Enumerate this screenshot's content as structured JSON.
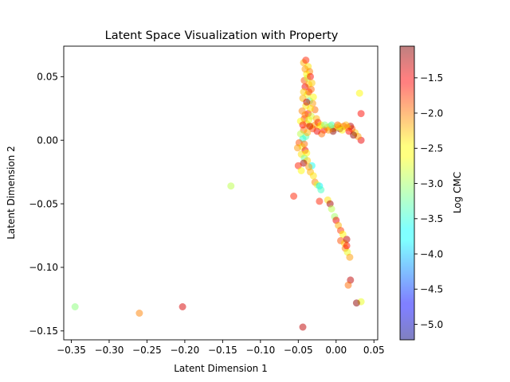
{
  "chart_data": {
    "type": "scatter",
    "title": "Latent Space Visualization with Property",
    "xlabel": "Latent Dimension 1",
    "ylabel": "Latent Dimension 2",
    "xlim": [
      -0.36,
      0.055
    ],
    "ylim": [
      -0.157,
      0.074
    ],
    "xticks": [
      -0.35,
      -0.3,
      -0.25,
      -0.2,
      -0.15,
      -0.1,
      -0.05,
      0.0,
      0.05
    ],
    "xtick_labels": [
      "−0.35",
      "−0.30",
      "−0.25",
      "−0.20",
      "−0.15",
      "−0.10",
      "−0.05",
      "0.00",
      "0.05"
    ],
    "yticks": [
      0.05,
      0.0,
      -0.05,
      -0.1,
      -0.15
    ],
    "ytick_labels": [
      "0.05",
      "0.00",
      "−0.05",
      "−0.10",
      "−0.15"
    ],
    "colorbar": {
      "label": "Log CMC",
      "range": [
        -5.22,
        -1.05
      ],
      "ticks": [
        -1.5,
        -2.0,
        -2.5,
        -3.0,
        -3.5,
        -4.0,
        -4.5,
        -5.0
      ],
      "tick_labels": [
        "−1.5",
        "−2.0",
        "−2.5",
        "−3.0",
        "−3.5",
        "−4.0",
        "−4.5",
        "−5.0"
      ],
      "colormap": "jet",
      "alpha": 0.5
    },
    "grid": false,
    "points": [
      {
        "x": -0.345,
        "y": -0.131,
        "c": -3.1
      },
      {
        "x": -0.26,
        "y": -0.136,
        "c": -2.1
      },
      {
        "x": -0.203,
        "y": -0.131,
        "c": -1.4
      },
      {
        "x": -0.139,
        "y": -0.036,
        "c": -2.9
      },
      {
        "x": -0.044,
        "y": -0.147,
        "c": -1.3
      },
      {
        "x": -0.056,
        "y": -0.044,
        "c": -1.7
      },
      {
        "x": 0.033,
        "y": -0.127,
        "c": -2.7
      },
      {
        "x": 0.027,
        "y": -0.128,
        "c": -1.1
      },
      {
        "x": 0.031,
        "y": 0.037,
        "c": -2.6
      },
      {
        "x": 0.033,
        "y": 0.021,
        "c": -1.6
      },
      {
        "x": 0.033,
        "y": 0.0,
        "c": -1.5
      },
      {
        "x": 0.029,
        "y": 0.003,
        "c": -2.2
      },
      {
        "x": 0.025,
        "y": 0.006,
        "c": -2.4
      },
      {
        "x": 0.021,
        "y": 0.009,
        "c": -1.9
      },
      {
        "x": 0.019,
        "y": 0.011,
        "c": -1.3
      },
      {
        "x": 0.015,
        "y": 0.01,
        "c": -2.3
      },
      {
        "x": 0.01,
        "y": 0.011,
        "c": -1.8
      },
      {
        "x": 0.005,
        "y": 0.009,
        "c": -1.1
      },
      {
        "x": 0.004,
        "y": 0.011,
        "c": -2.5
      },
      {
        "x": 0.0,
        "y": 0.01,
        "c": -2.7
      },
      {
        "x": -0.004,
        "y": 0.009,
        "c": -2.1
      },
      {
        "x": -0.008,
        "y": 0.011,
        "c": -2.8
      },
      {
        "x": -0.012,
        "y": 0.01,
        "c": -2.4
      },
      {
        "x": -0.016,
        "y": 0.008,
        "c": -1.6
      },
      {
        "x": -0.019,
        "y": 0.005,
        "c": -2.0
      },
      {
        "x": -0.022,
        "y": 0.011,
        "c": -2.6
      },
      {
        "x": -0.025,
        "y": 0.007,
        "c": -1.5
      },
      {
        "x": -0.028,
        "y": 0.012,
        "c": -2.2
      },
      {
        "x": -0.031,
        "y": 0.009,
        "c": -1.8
      },
      {
        "x": -0.034,
        "y": 0.011,
        "c": -2.4
      },
      {
        "x": -0.043,
        "y": 0.061,
        "c": -2.3
      },
      {
        "x": -0.04,
        "y": 0.063,
        "c": -1.7
      },
      {
        "x": -0.037,
        "y": 0.058,
        "c": -2.5
      },
      {
        "x": -0.035,
        "y": 0.054,
        "c": -2.1
      },
      {
        "x": -0.039,
        "y": 0.052,
        "c": -2.6
      },
      {
        "x": -0.042,
        "y": 0.047,
        "c": -1.9
      },
      {
        "x": -0.036,
        "y": 0.044,
        "c": -2.4
      },
      {
        "x": -0.041,
        "y": 0.042,
        "c": -1.5
      },
      {
        "x": -0.033,
        "y": 0.04,
        "c": -2.0
      },
      {
        "x": -0.038,
        "y": 0.036,
        "c": -2.7
      },
      {
        "x": -0.044,
        "y": 0.033,
        "c": -2.3
      },
      {
        "x": -0.035,
        "y": 0.031,
        "c": -3.3
      },
      {
        "x": -0.031,
        "y": 0.029,
        "c": -2.2
      },
      {
        "x": -0.04,
        "y": 0.027,
        "c": -2.5
      },
      {
        "x": -0.045,
        "y": 0.023,
        "c": -2.1
      },
      {
        "x": -0.037,
        "y": 0.021,
        "c": -1.6
      },
      {
        "x": -0.033,
        "y": 0.019,
        "c": -2.8
      },
      {
        "x": -0.042,
        "y": 0.017,
        "c": -1.8
      },
      {
        "x": -0.047,
        "y": 0.015,
        "c": -2.6
      },
      {
        "x": -0.039,
        "y": 0.013,
        "c": -2.3
      },
      {
        "x": -0.035,
        "y": 0.011,
        "c": -1.4
      },
      {
        "x": -0.043,
        "y": 0.008,
        "c": -2.0
      },
      {
        "x": -0.047,
        "y": 0.005,
        "c": -2.9
      },
      {
        "x": -0.04,
        "y": 0.003,
        "c": -3.3
      },
      {
        "x": -0.044,
        "y": 0.001,
        "c": -3.5
      },
      {
        "x": -0.049,
        "y": -0.002,
        "c": -1.9
      },
      {
        "x": -0.045,
        "y": -0.005,
        "c": -2.7
      },
      {
        "x": -0.051,
        "y": -0.006,
        "c": -2.2
      },
      {
        "x": -0.041,
        "y": -0.008,
        "c": -1.5
      },
      {
        "x": -0.046,
        "y": -0.011,
        "c": -2.5
      },
      {
        "x": -0.042,
        "y": -0.014,
        "c": -3.2
      },
      {
        "x": -0.038,
        "y": -0.016,
        "c": -2.4
      },
      {
        "x": -0.043,
        "y": -0.018,
        "c": -1.2
      },
      {
        "x": -0.05,
        "y": -0.02,
        "c": -1.7
      },
      {
        "x": -0.046,
        "y": -0.024,
        "c": -2.6
      },
      {
        "x": -0.032,
        "y": -0.02,
        "c": -3.6
      },
      {
        "x": -0.034,
        "y": -0.025,
        "c": -2.3
      },
      {
        "x": -0.028,
        "y": -0.033,
        "c": -2.1
      },
      {
        "x": -0.025,
        "y": -0.035,
        "c": -2.8
      },
      {
        "x": -0.022,
        "y": -0.036,
        "c": -3.7
      },
      {
        "x": -0.02,
        "y": -0.039,
        "c": -3.4
      },
      {
        "x": -0.022,
        "y": -0.048,
        "c": -1.7
      },
      {
        "x": -0.011,
        "y": -0.047,
        "c": -2.5
      },
      {
        "x": -0.008,
        "y": -0.05,
        "c": -1.2
      },
      {
        "x": -0.006,
        "y": -0.054,
        "c": -2.9
      },
      {
        "x": -0.002,
        "y": -0.06,
        "c": -3.0
      },
      {
        "x": 0.0,
        "y": -0.063,
        "c": -1.5
      },
      {
        "x": 0.003,
        "y": -0.067,
        "c": -2.3
      },
      {
        "x": 0.006,
        "y": -0.071,
        "c": -1.8
      },
      {
        "x": 0.009,
        "y": -0.074,
        "c": -2.6
      },
      {
        "x": 0.006,
        "y": -0.079,
        "c": -1.9
      },
      {
        "x": 0.011,
        "y": -0.081,
        "c": -2.4
      },
      {
        "x": 0.014,
        "y": -0.078,
        "c": -1.3
      },
      {
        "x": 0.012,
        "y": -0.085,
        "c": -2.1
      },
      {
        "x": 0.015,
        "y": -0.088,
        "c": -2.7
      },
      {
        "x": 0.018,
        "y": -0.092,
        "c": -2.2
      },
      {
        "x": 0.014,
        "y": -0.083,
        "c": -1.6
      },
      {
        "x": 0.019,
        "y": -0.11,
        "c": -1.3
      },
      {
        "x": 0.016,
        "y": -0.114,
        "c": -2.0
      },
      {
        "x": -0.004,
        "y": 0.007,
        "c": -1.1
      },
      {
        "x": -0.038,
        "y": 0.049,
        "c": -2.8
      },
      {
        "x": -0.032,
        "y": 0.045,
        "c": -2.4
      },
      {
        "x": -0.036,
        "y": 0.038,
        "c": -1.8
      },
      {
        "x": -0.03,
        "y": 0.034,
        "c": -2.6
      },
      {
        "x": -0.028,
        "y": 0.024,
        "c": -2.0
      },
      {
        "x": -0.026,
        "y": 0.017,
        "c": -2.3
      },
      {
        "x": -0.024,
        "y": 0.014,
        "c": -1.7
      },
      {
        "x": -0.02,
        "y": 0.012,
        "c": -2.5
      },
      {
        "x": -0.015,
        "y": 0.012,
        "c": -3.1
      },
      {
        "x": -0.01,
        "y": 0.008,
        "c": -2.2
      },
      {
        "x": -0.006,
        "y": 0.012,
        "c": -3.4
      },
      {
        "x": 0.002,
        "y": 0.012,
        "c": -2.0
      },
      {
        "x": 0.008,
        "y": 0.008,
        "c": -2.6
      },
      {
        "x": 0.013,
        "y": 0.012,
        "c": -2.3
      },
      {
        "x": 0.017,
        "y": 0.007,
        "c": -1.6
      },
      {
        "x": 0.023,
        "y": 0.004,
        "c": -1.1
      },
      {
        "x": -0.041,
        "y": 0.056,
        "c": -2.2
      },
      {
        "x": -0.034,
        "y": 0.05,
        "c": -1.6
      },
      {
        "x": -0.043,
        "y": 0.038,
        "c": -2.4
      },
      {
        "x": -0.039,
        "y": 0.03,
        "c": -1.3
      },
      {
        "x": -0.034,
        "y": 0.025,
        "c": -2.5
      },
      {
        "x": -0.041,
        "y": 0.02,
        "c": -2.1
      },
      {
        "x": -0.036,
        "y": 0.016,
        "c": -2.7
      },
      {
        "x": -0.044,
        "y": 0.012,
        "c": -1.6
      },
      {
        "x": -0.038,
        "y": 0.006,
        "c": -2.3
      },
      {
        "x": -0.042,
        "y": -0.003,
        "c": -2.0
      },
      {
        "x": -0.039,
        "y": -0.01,
        "c": -2.6
      },
      {
        "x": -0.036,
        "y": -0.021,
        "c": -2.2
      },
      {
        "x": -0.03,
        "y": -0.028,
        "c": -2.5
      }
    ]
  }
}
